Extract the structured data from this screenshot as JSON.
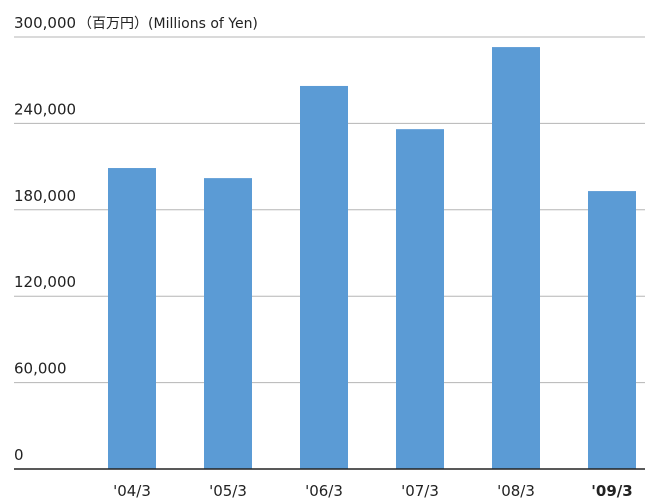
{
  "chart_data": {
    "type": "bar",
    "title": "",
    "unit_label_top": "（百万円）(Millions of Yen)",
    "xlabel": "",
    "ylabel": "",
    "categories": [
      "'04/3",
      "'05/3",
      "'06/3",
      "'07/3",
      "'08/3",
      "'09/3"
    ],
    "highlight_category": "'09/3",
    "values": [
      209000,
      202000,
      266000,
      236000,
      293000,
      193000
    ],
    "ylim": [
      0,
      300000
    ],
    "yticks": [
      0,
      60000,
      120000,
      180000,
      240000,
      300000
    ],
    "ytick_labels": [
      "0",
      "60,000",
      "120,000",
      "180,000",
      "240,000",
      "300,000"
    ],
    "grid": true,
    "bar_color": "#5b9bd5"
  }
}
